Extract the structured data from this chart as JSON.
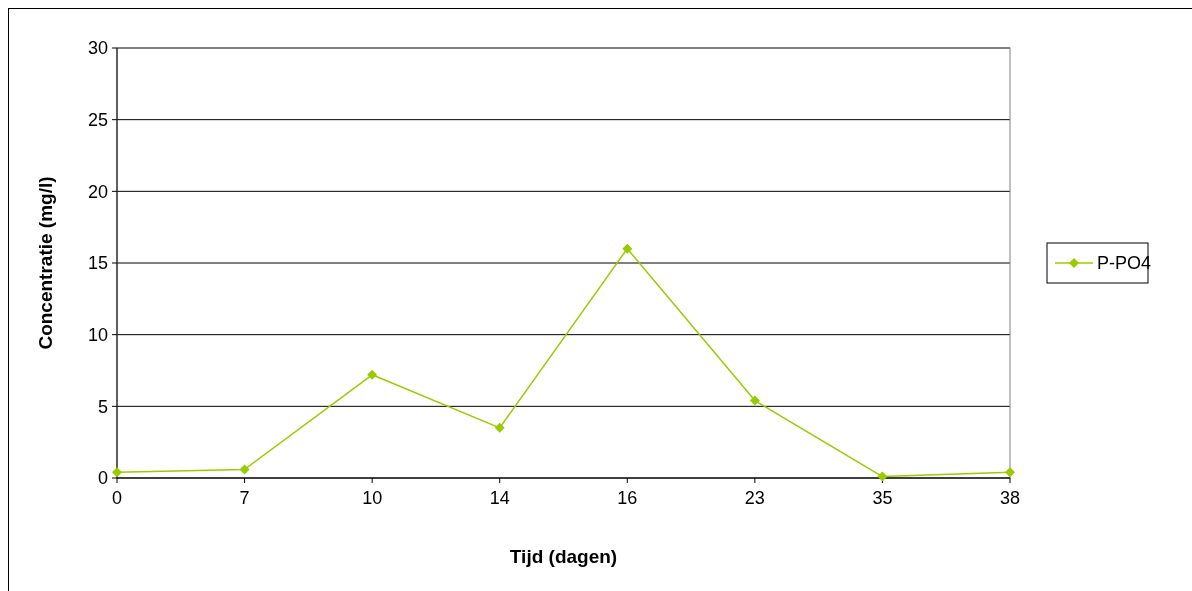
{
  "chart_data": {
    "type": "line",
    "xlabel": "Tijd (dagen)",
    "ylabel": "Concentratie (mg/l)",
    "categories": [
      "0",
      "7",
      "10",
      "14",
      "16",
      "23",
      "35",
      "38"
    ],
    "series": [
      {
        "name": "P-PO4",
        "color": "#99cc00",
        "values": [
          0.4,
          0.6,
          7.2,
          3.5,
          16,
          5.4,
          0.1,
          0.4
        ]
      }
    ],
    "ylim": [
      0,
      30
    ],
    "yticks": [
      0,
      5,
      10,
      15,
      20,
      25,
      30
    ],
    "grid": "y",
    "legend": "right",
    "marker": "diamond",
    "line_style": "solid"
  }
}
